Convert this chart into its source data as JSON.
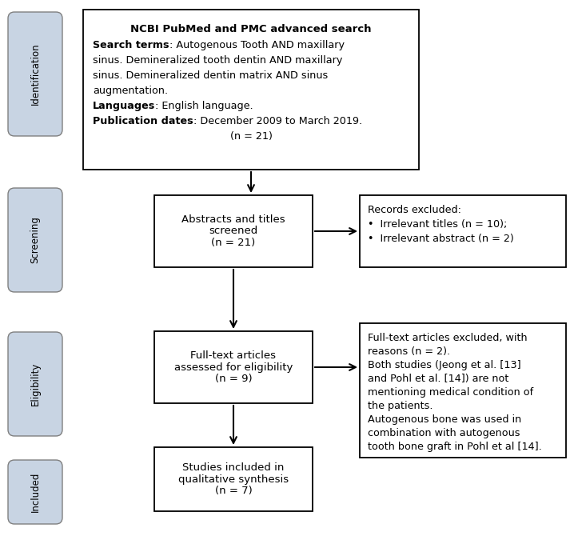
{
  "background_color": "#ffffff",
  "border_color": "#000000",
  "sidebar_fill": "#c8d4e3",
  "box_fill": "#ffffff",
  "box_edge_color": "#000000",
  "sidebar_labels": [
    "Identification",
    "Screening",
    "Eligibility",
    "Included"
  ],
  "box1_title": "NCBI PubMed and PMC advanced search",
  "box1_lines": [
    [
      [
        "Search terms",
        true
      ],
      [
        ": Autogenous Tooth AND maxillary",
        false
      ]
    ],
    [
      [
        "sinus. Demineralized tooth dentin AND maxillary",
        false
      ]
    ],
    [
      [
        "sinus. Demineralized dentin matrix AND sinus",
        false
      ]
    ],
    [
      [
        "augmentation.",
        false
      ]
    ],
    [
      [
        "Languages",
        true
      ],
      [
        ": English language.",
        false
      ]
    ],
    [
      [
        "Publication dates",
        true
      ],
      [
        ": December 2009 to March 2019.",
        false
      ]
    ],
    [
      [
        "(n = 21)",
        false,
        "center"
      ]
    ]
  ],
  "box2_text": "Abstracts and titles\nscreened\n(n = 21)",
  "box3_text": "Full-text articles\nassessed for eligibility\n(n = 9)",
  "box4_text": "Studies included in\nqualitative synthesis\n(n = 7)",
  "side_box1_title": "Records excluded:",
  "side_box1_bullets": [
    "Irrelevant titles (n = 10);",
    "Irrelevant abstract (n = 2)"
  ],
  "side_box2_lines": [
    "Full-text articles excluded, with",
    "reasons (n = 2).",
    "Both studies (Jeong et al. [13]",
    "and Pohl et al. [14]) are not",
    "mentioning medical condition of",
    "the patients.",
    "Autogenous bone was used in",
    "combination with autogenous",
    "tooth bone graft in Pohl et al [14]."
  ]
}
